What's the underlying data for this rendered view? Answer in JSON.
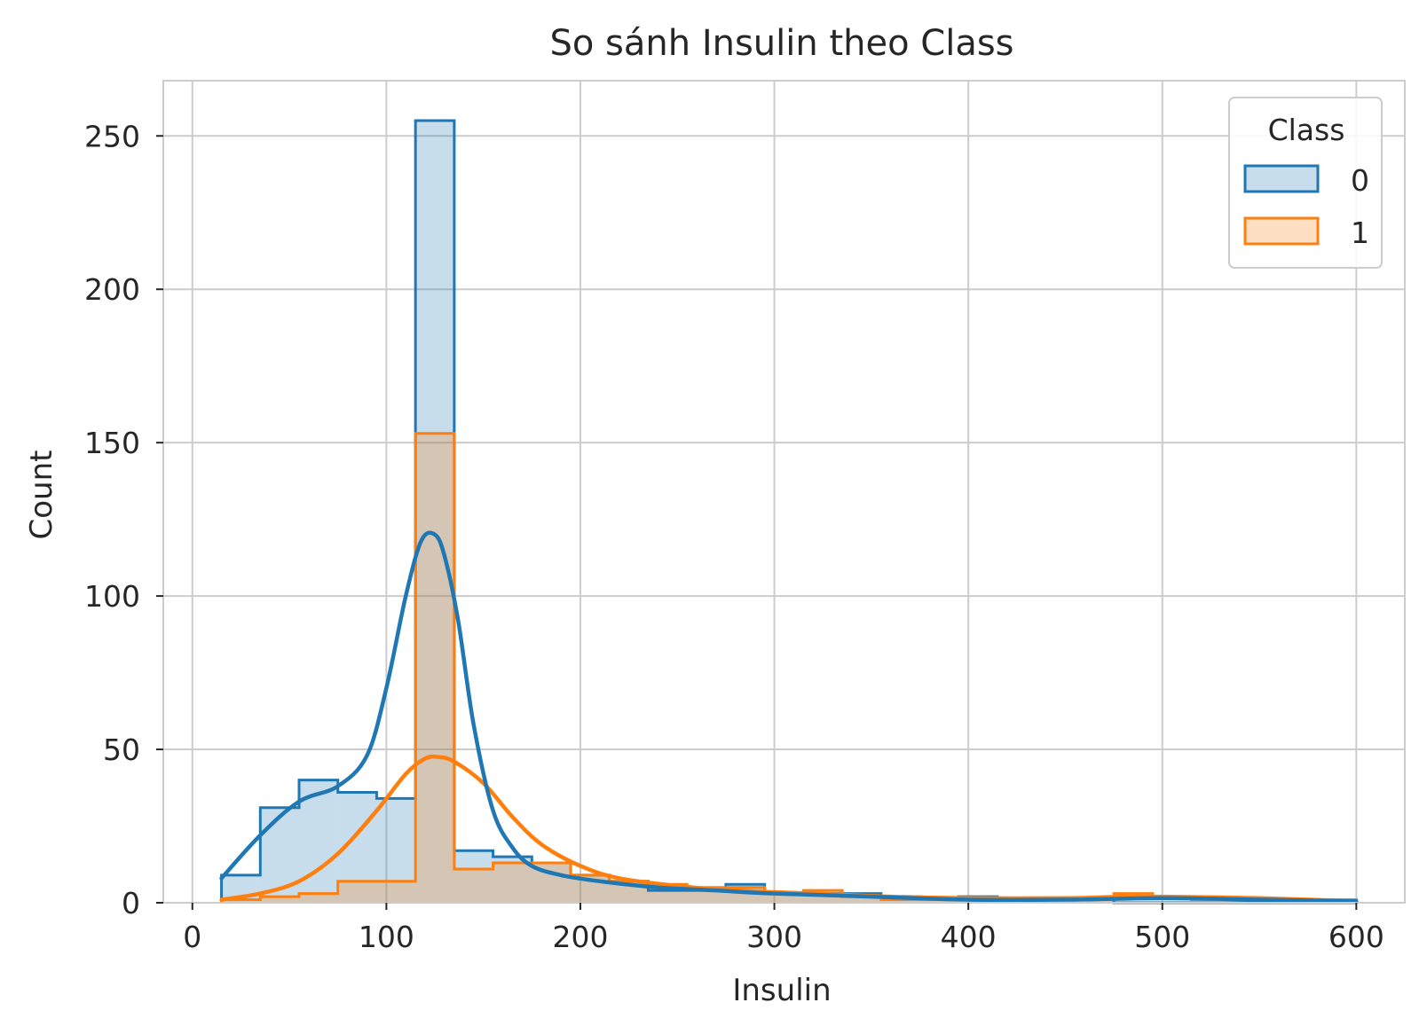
{
  "chart_data": {
    "type": "histogram",
    "title": "So sánh Insulin theo Class",
    "xlabel": "Insulin",
    "ylabel": "Count",
    "xlim": [
      -15,
      625
    ],
    "ylim": [
      0,
      268
    ],
    "xticks": [
      0,
      100,
      200,
      300,
      400,
      500,
      600
    ],
    "yticks": [
      0,
      50,
      100,
      150,
      200,
      250
    ],
    "grid": true,
    "legend": {
      "title": "Class",
      "placement": "top-right"
    },
    "bin_edges": [
      15,
      35,
      55,
      75,
      95,
      115,
      135,
      155,
      175,
      195,
      215,
      235,
      255,
      275,
      295,
      315,
      335,
      355,
      375,
      395,
      415,
      435,
      455,
      475,
      495,
      515,
      535,
      555,
      575,
      600
    ],
    "series": [
      {
        "name": "0",
        "color": "#1f77b4",
        "counts": [
          9,
          31,
          40,
          36,
          34,
          255,
          17,
          15,
          13,
          9,
          7,
          4,
          4,
          6,
          3,
          3,
          3,
          2,
          1,
          2,
          1,
          1,
          1,
          0,
          0,
          0,
          0,
          0,
          0
        ],
        "kde": {
          "x": [
            15,
            35,
            55,
            75,
            90,
            100,
            110,
            118,
            125,
            130,
            137,
            145,
            155,
            165,
            175,
            190,
            210,
            240,
            270,
            300,
            350,
            400,
            450,
            500,
            550,
            600
          ],
          "y": [
            8,
            22,
            33,
            38,
            48,
            70,
            100,
            118,
            120,
            113,
            92,
            58,
            30,
            18,
            12,
            9,
            7,
            5,
            4,
            3,
            2,
            1,
            1,
            1.5,
            1,
            0.5
          ]
        }
      },
      {
        "name": "1",
        "color": "#ff7f0e",
        "counts": [
          1,
          2,
          3,
          7,
          7,
          153,
          11,
          13,
          13,
          9,
          7,
          6,
          5,
          5,
          3,
          4,
          2,
          1,
          1,
          1,
          1,
          1,
          1,
          3,
          2,
          1,
          1,
          1,
          1
        ],
        "kde": {
          "x": [
            15,
            35,
            55,
            75,
            95,
            110,
            120,
            127,
            135,
            150,
            165,
            180,
            200,
            220,
            250,
            280,
            320,
            360,
            400,
            450,
            480,
            500,
            550,
            600
          ],
          "y": [
            1,
            3,
            7,
            16,
            30,
            42,
            47,
            47.5,
            46,
            39,
            28,
            19,
            12,
            8,
            5.5,
            4,
            3,
            2,
            1.5,
            1.5,
            2,
            2,
            1.5,
            0.5
          ]
        }
      }
    ]
  }
}
